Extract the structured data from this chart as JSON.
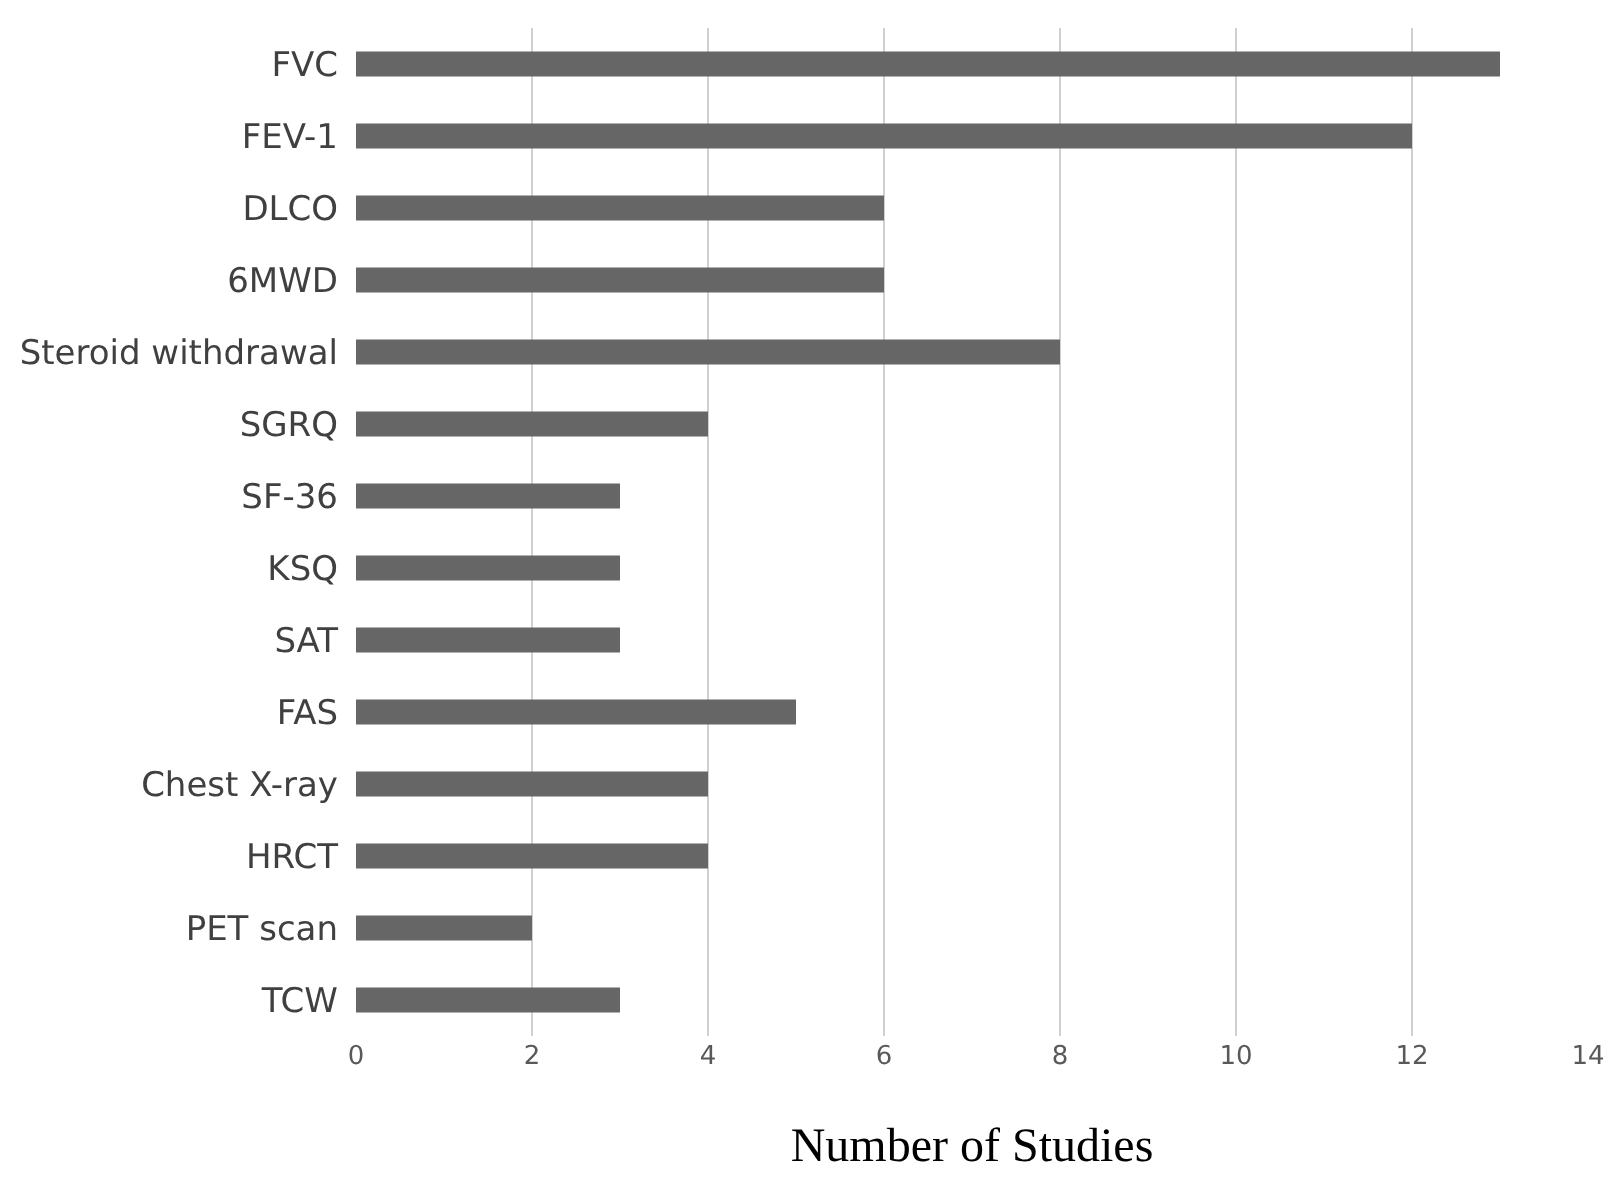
{
  "chart_data": {
    "type": "bar",
    "orientation": "horizontal",
    "xlabel": "Number of Studies",
    "categories": [
      "FVC",
      "FEV-1",
      "DLCO",
      "6MWD",
      "Steroid withdrawal",
      "SGRQ",
      "SF-36",
      "KSQ",
      "SAT",
      "FAS",
      "Chest X-ray",
      "HRCT",
      "PET scan",
      "TCW"
    ],
    "values": [
      13,
      12,
      6,
      6,
      8,
      4,
      3,
      3,
      3,
      5,
      4,
      4,
      2,
      3
    ],
    "color": "#666666",
    "xlim": [
      0,
      14
    ],
    "xticks": [
      0,
      2,
      4,
      6,
      8,
      10,
      12,
      14
    ],
    "grid": "x"
  }
}
